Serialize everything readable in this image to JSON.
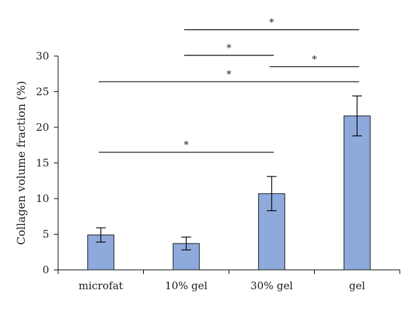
{
  "chart_data": {
    "type": "bar",
    "title": "",
    "xlabel": "",
    "ylabel": "Collagen volume fraction (%)",
    "ylim": [
      0,
      30
    ],
    "yticks": [
      0,
      5,
      10,
      15,
      20,
      25,
      30
    ],
    "categories": [
      "microfat",
      "10% gel",
      "30% gel",
      "gel"
    ],
    "values": [
      4.9,
      3.7,
      10.7,
      21.6
    ],
    "errors": [
      1.0,
      0.9,
      2.4,
      2.8
    ],
    "bar_color": "#8EA9DB",
    "grid": false,
    "significance": [
      {
        "from": 1,
        "to": 3,
        "level": 33.7,
        "label": "*"
      },
      {
        "from": 1,
        "to": 2,
        "level": 30.1,
        "label": "*"
      },
      {
        "from": 2,
        "to": 3,
        "level": 28.5,
        "label": "*"
      },
      {
        "from": 0,
        "to": 3,
        "level": 26.4,
        "label": "*"
      },
      {
        "from": 0,
        "to": 2,
        "level": 16.5,
        "label": "*"
      }
    ]
  }
}
